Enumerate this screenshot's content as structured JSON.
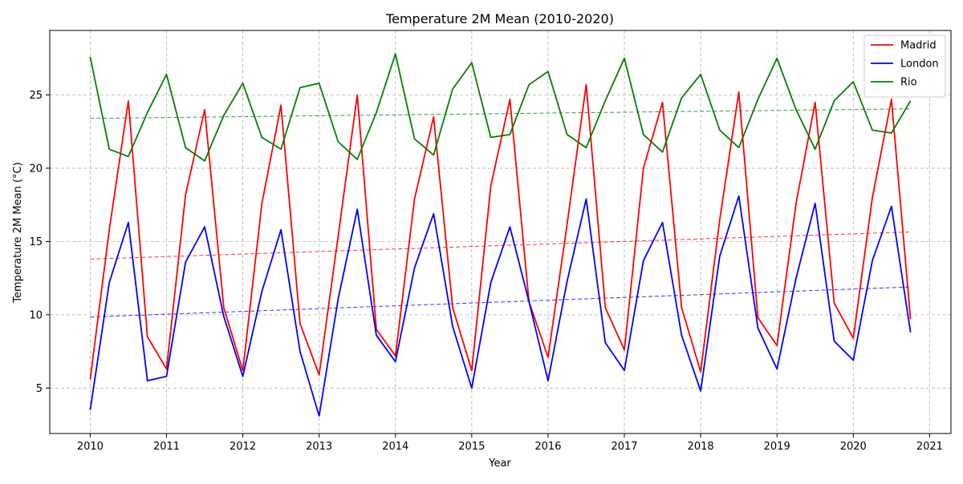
{
  "chart_data": {
    "type": "line",
    "title": "Temperature 2M Mean (2010-2020)",
    "xlabel": "Year",
    "ylabel": "Temperature 2M Mean (°C)",
    "xlim": [
      2009.47,
      2021.28
    ],
    "ylim": [
      1.9,
      29.4
    ],
    "x_ticks": [
      2010,
      2011,
      2012,
      2013,
      2014,
      2015,
      2016,
      2017,
      2018,
      2019,
      2020,
      2021
    ],
    "y_ticks": [
      5,
      10,
      15,
      20,
      25
    ],
    "grid": true,
    "legend_position": "upper right",
    "x": [
      2010,
      2010.25,
      2010.5,
      2010.75,
      2011,
      2011.25,
      2011.5,
      2011.75,
      2012,
      2012.25,
      2012.5,
      2012.75,
      2013,
      2013.25,
      2013.5,
      2013.75,
      2014,
      2014.25,
      2014.5,
      2014.75,
      2015,
      2015.25,
      2015.5,
      2015.75,
      2016,
      2016.25,
      2016.5,
      2016.75,
      2017,
      2017.25,
      2017.5,
      2017.75,
      2018,
      2018.25,
      2018.5,
      2018.75,
      2019,
      2019.25,
      2019.5,
      2019.75,
      2020,
      2020.25,
      2020.5,
      2020.75
    ],
    "series": [
      {
        "name": "Madrid",
        "color": "#ff0000",
        "values": [
          5.6,
          15.8,
          24.6,
          8.5,
          6.3,
          18.2,
          24.0,
          10.5,
          6.2,
          17.6,
          24.3,
          9.4,
          5.9,
          15.4,
          25.0,
          9.0,
          7.2,
          17.9,
          23.5,
          10.5,
          6.2,
          18.8,
          24.7,
          10.9,
          7.1,
          16.2,
          25.7,
          10.5,
          7.6,
          20.0,
          24.5,
          10.5,
          6.1,
          16.5,
          25.2,
          9.8,
          7.9,
          17.6,
          24.5,
          10.8,
          8.4,
          18.0,
          24.7,
          9.7
        ]
      },
      {
        "name": "London",
        "color": "#0000ff",
        "values": [
          3.5,
          12.2,
          16.3,
          5.5,
          5.8,
          13.6,
          16.0,
          9.9,
          5.8,
          11.6,
          15.8,
          7.5,
          3.1,
          11.1,
          17.2,
          8.6,
          6.8,
          13.2,
          16.9,
          9.2,
          5.0,
          12.2,
          16.0,
          10.9,
          5.5,
          12.3,
          17.9,
          8.1,
          6.2,
          13.7,
          16.3,
          8.6,
          4.8,
          14.0,
          18.1,
          9.1,
          6.3,
          12.5,
          17.6,
          8.2,
          6.9,
          13.7,
          17.4,
          8.8
        ]
      },
      {
        "name": "Rio",
        "color": "#008000",
        "values": [
          27.6,
          21.3,
          20.8,
          23.8,
          26.4,
          21.4,
          20.5,
          23.6,
          25.8,
          22.1,
          21.3,
          25.5,
          25.8,
          21.8,
          20.6,
          23.8,
          27.8,
          22.0,
          20.9,
          25.4,
          27.2,
          22.1,
          22.3,
          25.7,
          26.6,
          22.3,
          21.4,
          24.6,
          27.5,
          22.3,
          21.1,
          24.8,
          26.4,
          22.6,
          21.4,
          24.7,
          27.5,
          24.0,
          21.3,
          24.6,
          25.9,
          22.6,
          22.4,
          24.6
        ]
      }
    ],
    "trendlines": [
      {
        "series": "Madrid",
        "color": "#ff0000",
        "x": [
          2010,
          2020.75
        ],
        "y": [
          13.8,
          15.65
        ]
      },
      {
        "series": "London",
        "color": "#0000ff",
        "x": [
          2010,
          2020.75
        ],
        "y": [
          9.85,
          11.9
        ]
      },
      {
        "series": "Rio",
        "color": "#008000",
        "x": [
          2010,
          2020.75
        ],
        "y": [
          23.4,
          24.05
        ]
      }
    ]
  }
}
